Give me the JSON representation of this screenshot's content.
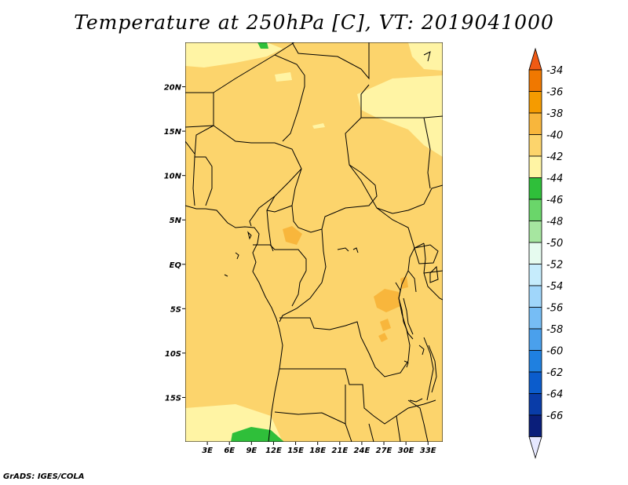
{
  "title": "Temperature at 250hPa [C], VT: 2019041000",
  "credit": "GrADS: IGES/COLA",
  "map": {
    "lat_range": [
      -20,
      25
    ],
    "lon_range": [
      0,
      35
    ],
    "lat_ticks": [
      {
        "label": "20N",
        "value": 20
      },
      {
        "label": "15N",
        "value": 15
      },
      {
        "label": "10N",
        "value": 10
      },
      {
        "label": "5N",
        "value": 5
      },
      {
        "label": "EQ",
        "value": 0
      },
      {
        "label": "5S",
        "value": -5
      },
      {
        "label": "10S",
        "value": -10
      },
      {
        "label": "15S",
        "value": -15
      }
    ],
    "lon_ticks": [
      {
        "label": "3E",
        "value": 3
      },
      {
        "label": "6E",
        "value": 6
      },
      {
        "label": "9E",
        "value": 9
      },
      {
        "label": "12E",
        "value": 12
      },
      {
        "label": "15E",
        "value": 15
      },
      {
        "label": "18E",
        "value": 18
      },
      {
        "label": "21E",
        "value": 21
      },
      {
        "label": "24E",
        "value": 24
      },
      {
        "label": "27E",
        "value": 27
      },
      {
        "label": "30E",
        "value": 30
      },
      {
        "label": "33E",
        "value": 33
      }
    ]
  },
  "colorbar": {
    "labels": [
      "-34",
      "-36",
      "-38",
      "-40",
      "-42",
      "-44",
      "-46",
      "-48",
      "-50",
      "-52",
      "-54",
      "-56",
      "-58",
      "-60",
      "-62",
      "-64",
      "-66"
    ],
    "colors": [
      "#f05a14",
      "#f07800",
      "#f59b00",
      "#f8b63c",
      "#fcd46c",
      "#fff4a4",
      "#2fbf3a",
      "#6ad66a",
      "#a6e6a0",
      "#e6fbef",
      "#c6ecfc",
      "#a0d6fa",
      "#76bdf5",
      "#4aa0ec",
      "#1f80e0",
      "#0b5ccc",
      "#093ca8",
      "#0a1e7a",
      "#e6e8ff"
    ]
  }
}
